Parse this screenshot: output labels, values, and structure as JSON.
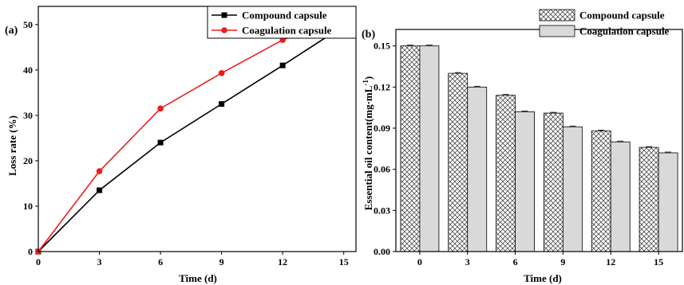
{
  "colors": {
    "compound": "#000000",
    "coagulation": "#ee1c1c",
    "coagulation_bar": "#d9d9d9",
    "compound_bar": "#ffffff"
  },
  "chart_data": [
    {
      "type": "line",
      "panel_label": "(a)",
      "xlabel": "Time (d)",
      "ylabel": "Loss rate (%)",
      "x": [
        0,
        3,
        6,
        9,
        12,
        15
      ],
      "xticks": [
        "0",
        "3",
        "6",
        "9",
        "12",
        "15"
      ],
      "yticks": [
        "0",
        "10",
        "20",
        "30",
        "40",
        "50"
      ],
      "xlim": [
        0,
        15.6
      ],
      "ylim": [
        0,
        54
      ],
      "legend_position": "top-right",
      "series": [
        {
          "name": "Compound capsule",
          "marker": "square",
          "values": [
            0,
            13.5,
            24.0,
            32.5,
            41.0,
            49.7
          ]
        },
        {
          "name": "Coagulation capsule",
          "marker": "circle",
          "values": [
            0,
            17.7,
            31.5,
            39.3,
            46.6,
            51.7
          ]
        }
      ]
    },
    {
      "type": "bar",
      "panel_label": "(b)",
      "xlabel": "Time (d)",
      "ylabel": "Essential oil content(mg·mL",
      "ylabel_sup": "-1",
      "ylabel_close": ")",
      "categories": [
        "0",
        "3",
        "6",
        "9",
        "12",
        "15"
      ],
      "yticks": [
        "0.00",
        "0.03",
        "0.06",
        "0.09",
        "0.12",
        "0.15"
      ],
      "ylim": [
        0,
        0.162
      ],
      "legend_position": "top-right",
      "series": [
        {
          "name": "Compound capsule",
          "pattern": "crosshatch",
          "values": [
            0.15,
            0.13,
            0.114,
            0.101,
            0.088,
            0.076
          ]
        },
        {
          "name": "Coagulation capsule",
          "pattern": "solid-gray",
          "values": [
            0.15,
            0.12,
            0.102,
            0.091,
            0.08,
            0.072
          ]
        }
      ]
    }
  ]
}
